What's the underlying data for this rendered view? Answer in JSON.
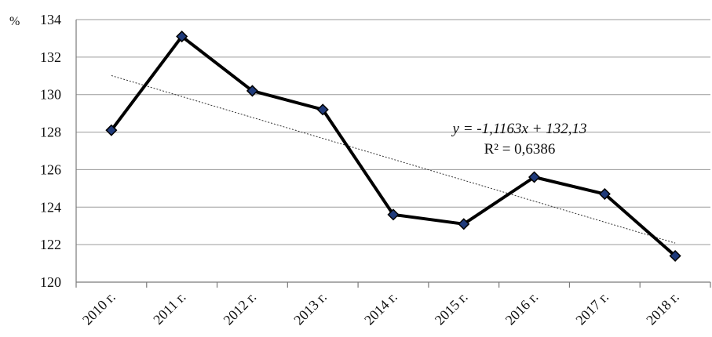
{
  "chart_data": {
    "type": "line",
    "y_unit_label": "%",
    "categories": [
      "2010 г.",
      "2011 г.",
      "2012 г.",
      "2013 г.",
      "2014 г.",
      "2015 г.",
      "2016 г.",
      "2017 г.",
      "2018 г."
    ],
    "series": [
      {
        "values": [
          128.1,
          133.1,
          130.2,
          129.2,
          123.6,
          123.1,
          125.6,
          124.7,
          121.4
        ],
        "color": "#000000",
        "marker_color": "#1f3a7a"
      }
    ],
    "ylim": [
      120,
      134
    ],
    "yticks": [
      120,
      122,
      124,
      126,
      128,
      130,
      132,
      134
    ],
    "trendline": {
      "type": "linear",
      "slope": -1.1163,
      "intercept": 132.13,
      "equation_label": "y = -1,1163x + 132,13",
      "r2_label": "R² = 0,6386"
    },
    "grid": true
  }
}
